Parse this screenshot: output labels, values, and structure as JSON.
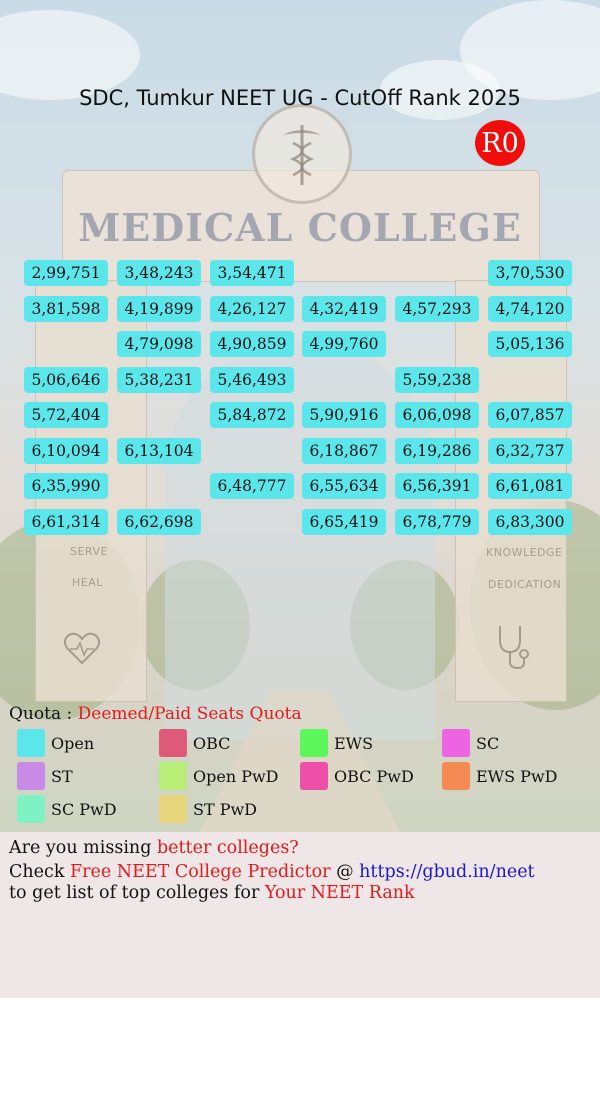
{
  "header": {
    "title": "SDC, Tumkur NEET UG - CutOff Rank 2025",
    "round_badge": "R0"
  },
  "cutoff_rows": [
    [
      "2,99,751",
      "3,48,243",
      "3,54,471",
      "",
      "",
      "3,70,530"
    ],
    [
      "3,81,598",
      "4,19,899",
      "4,26,127",
      "4,32,419",
      "4,57,293",
      "4,74,120"
    ],
    [
      "",
      "4,79,098",
      "4,90,859",
      "4,99,760",
      "",
      "5,05,136"
    ],
    [
      "5,06,646",
      "5,38,231",
      "5,46,493",
      "",
      "5,59,238",
      ""
    ],
    [
      "5,72,404",
      "",
      "5,84,872",
      "5,90,916",
      "6,06,098",
      "6,07,857"
    ],
    [
      "6,10,094",
      "6,13,104",
      "",
      "6,18,867",
      "6,19,286",
      "6,32,737"
    ],
    [
      "6,35,990",
      "",
      "6,48,777",
      "6,55,634",
      "6,56,391",
      "6,61,081"
    ],
    [
      "6,61,314",
      "6,62,698",
      "",
      "6,65,419",
      "6,78,779",
      "6,83,300"
    ]
  ],
  "quota": {
    "label": "Quota :",
    "value": "Deemed/Paid Seats Quota"
  },
  "legend": [
    {
      "label": "Open",
      "color": "#5ae6ea"
    },
    {
      "label": "OBC",
      "color": "#de5a78"
    },
    {
      "label": "EWS",
      "color": "#5cf75a"
    },
    {
      "label": "SC",
      "color": "#ee62e4"
    },
    {
      "label": "ST",
      "color": "#c88be6"
    },
    {
      "label": "Open PwD",
      "color": "#b8ee78"
    },
    {
      "label": "OBC PwD",
      "color": "#ee4fa8"
    },
    {
      "label": "EWS PwD",
      "color": "#f58a52"
    },
    {
      "label": "SC PwD",
      "color": "#7ef2c4"
    },
    {
      "label": "ST PwD",
      "color": "#e6d57a"
    }
  ],
  "promo": {
    "line1_a": "Are you missing ",
    "line1_b": "better colleges?",
    "line2_a": "Check ",
    "line2_b": "Free NEET College Predictor",
    "line2_c": " @ ",
    "line2_d": "https://gbud.in/neet",
    "line3_a": "to get list of top colleges for ",
    "line3_b": "Your NEET Rank"
  },
  "background": {
    "building_sign": "MEDICAL COLLEGE",
    "left_pillar_words": [
      "SERVE",
      "HEAL"
    ],
    "right_pillar_words": [
      "KNOWLEDGE",
      "DEDICATION"
    ]
  }
}
